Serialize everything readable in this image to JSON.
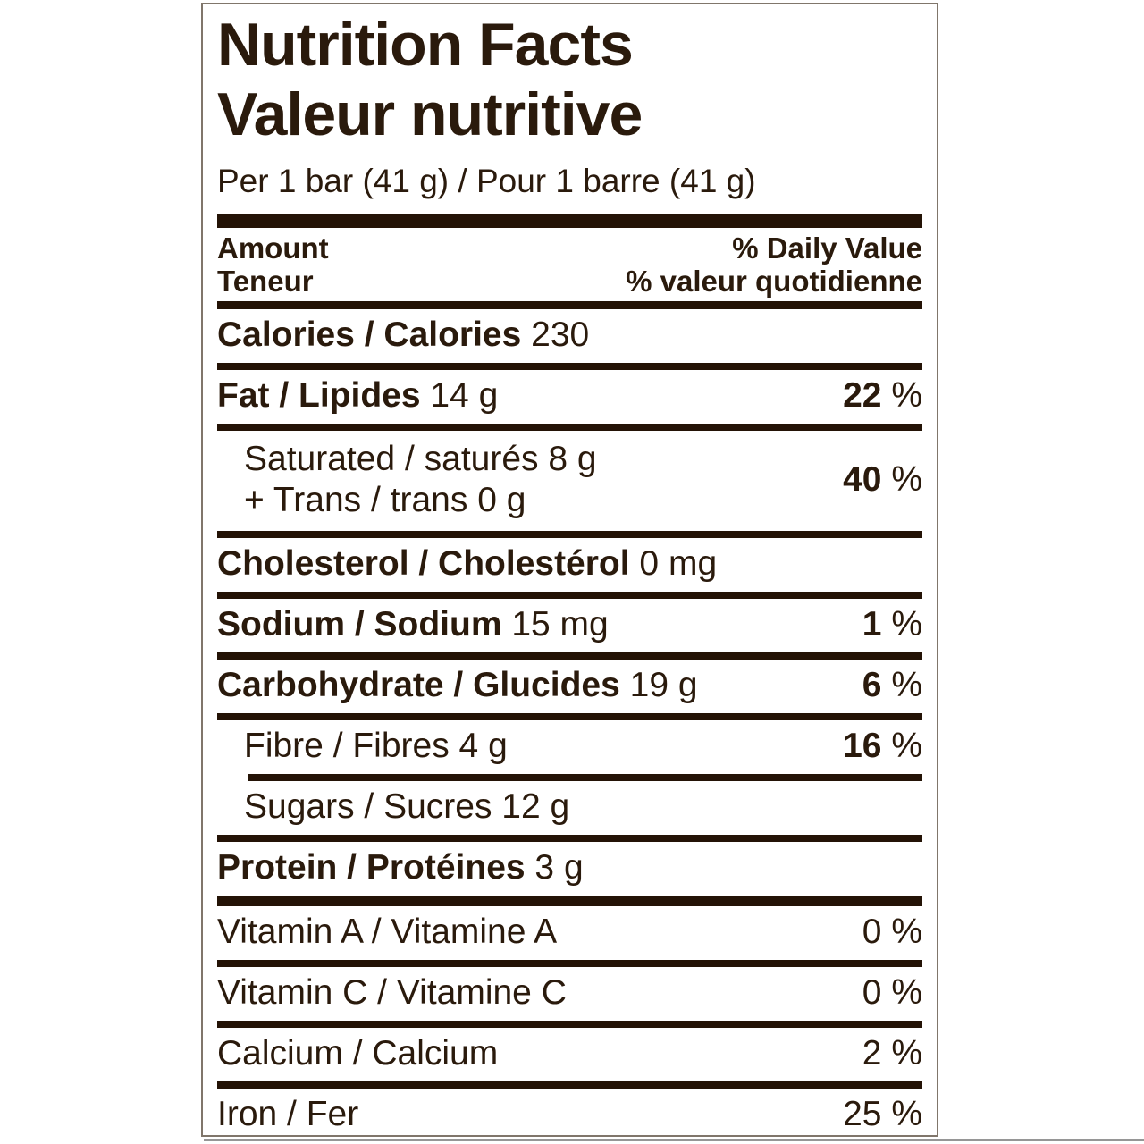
{
  "label": {
    "title_en": "Nutrition Facts",
    "title_fr": "Valeur nutritive",
    "serving": "Per 1 bar (41 g) / Pour 1 barre (41 g)",
    "header": {
      "amount_en": "Amount",
      "amount_fr": "Teneur",
      "daily_value_en": "% Daily Value",
      "daily_value_fr": "% valeur quotidienne"
    },
    "percent_sign": "%",
    "rows": [
      {
        "id": "calories",
        "lines": [
          [
            {
              "t": "Calories / Calories",
              "b": true
            },
            {
              "t": " 230",
              "b": false
            }
          ]
        ],
        "percent": null,
        "level": 0,
        "sep": "thin"
      },
      {
        "id": "fat",
        "lines": [
          [
            {
              "t": "Fat / Lipides",
              "b": true
            },
            {
              "t": " 14 g",
              "b": false
            }
          ]
        ],
        "percent": {
          "value": "22",
          "bold": true
        },
        "level": 0,
        "sep": "thin"
      },
      {
        "id": "saturated-trans",
        "lines": [
          [
            {
              "t": "Saturated / saturés 8 g",
              "b": false
            }
          ],
          [
            {
              "t": "+ Trans / trans 0 g",
              "b": false
            }
          ]
        ],
        "percent": {
          "value": "40",
          "bold": true
        },
        "level": 1,
        "sep": "thin"
      },
      {
        "id": "cholesterol",
        "lines": [
          [
            {
              "t": "Cholesterol / Cholestérol",
              "b": true
            },
            {
              "t": " 0 mg",
              "b": false
            }
          ]
        ],
        "percent": null,
        "level": 0,
        "sep": "thin"
      },
      {
        "id": "sodium",
        "lines": [
          [
            {
              "t": "Sodium / Sodium",
              "b": true
            },
            {
              "t": " 15 mg",
              "b": false
            }
          ]
        ],
        "percent": {
          "value": "1",
          "bold": true
        },
        "level": 0,
        "sep": "thin"
      },
      {
        "id": "carbohydrate",
        "lines": [
          [
            {
              "t": "Carbohydrate / Glucides",
              "b": true
            },
            {
              "t": " 19 g",
              "b": false
            }
          ]
        ],
        "percent": {
          "value": "6",
          "bold": true
        },
        "level": 0,
        "sep": "thin"
      },
      {
        "id": "fibre",
        "lines": [
          [
            {
              "t": "Fibre / Fibres 4 g",
              "b": false
            }
          ]
        ],
        "percent": {
          "value": "16",
          "bold": true
        },
        "level": 1,
        "sep": "thin-indent"
      },
      {
        "id": "sugars",
        "lines": [
          [
            {
              "t": "Sugars / Sucres 12 g",
              "b": false
            }
          ]
        ],
        "percent": null,
        "level": 1,
        "sep": "thin"
      },
      {
        "id": "protein",
        "lines": [
          [
            {
              "t": "Protein / Protéines",
              "b": true
            },
            {
              "t": " 3 g",
              "b": false
            }
          ]
        ],
        "percent": null,
        "level": 0,
        "sep": "thick"
      },
      {
        "id": "vitamin-a",
        "lines": [
          [
            {
              "t": "Vitamin A / Vitamine A",
              "b": false
            }
          ]
        ],
        "percent": {
          "value": "0",
          "bold": false
        },
        "level": 0,
        "sep": "thin"
      },
      {
        "id": "vitamin-c",
        "lines": [
          [
            {
              "t": "Vitamin C / Vitamine C",
              "b": false
            }
          ]
        ],
        "percent": {
          "value": "0",
          "bold": false
        },
        "level": 0,
        "sep": "thin"
      },
      {
        "id": "calcium",
        "lines": [
          [
            {
              "t": "Calcium / Calcium",
              "b": false
            }
          ]
        ],
        "percent": {
          "value": "2",
          "bold": false
        },
        "level": 0,
        "sep": "thin"
      },
      {
        "id": "iron",
        "lines": [
          [
            {
              "t": "Iron / Fer",
              "b": false
            }
          ]
        ],
        "percent": {
          "value": "25",
          "bold": false
        },
        "level": 0,
        "sep": "none"
      }
    ]
  },
  "colors": {
    "text": "#2a1a0c",
    "separator_bar": "#241306",
    "label_border": "#80766b",
    "background": "#ffffff",
    "bottom_shadow": "#969696"
  }
}
